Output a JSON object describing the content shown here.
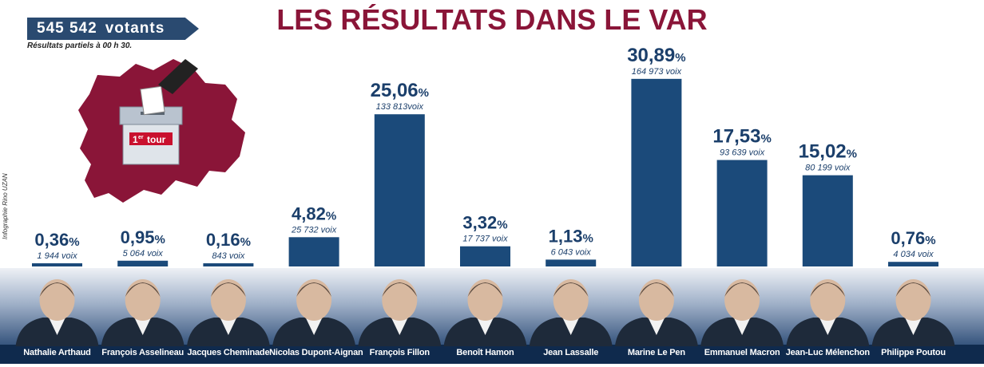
{
  "header": {
    "title": "LES RÉSULTATS DANS LE VAR",
    "voters_count": "545 542",
    "voters_label": "votants",
    "partial_note": "Résultats partiels à 00 h 30.",
    "credit": "Infographie Rino UZAN"
  },
  "map": {
    "ballot_label_main": "1",
    "ballot_label_sup": "er",
    "ballot_label_word": "tour"
  },
  "colors": {
    "bar": "#1b4a7a",
    "title": "#8a1538",
    "map": "#8a1538",
    "name_band": "#0f2a4d"
  },
  "chart_data": {
    "type": "bar",
    "title": "LES RÉSULTATS DANS LE VAR",
    "categories": [
      "Nathalie Arthaud",
      "François Asselineau",
      "Jacques Cheminade",
      "Nicolas Dupont-Aignan",
      "François Fillon",
      "Benoît Hamon",
      "Jean Lassalle",
      "Marine Le Pen",
      "Emmanuel Macron",
      "Jean-Luc Mélenchon",
      "Philippe Poutou"
    ],
    "values": [
      0.36,
      0.95,
      0.16,
      4.82,
      25.06,
      3.32,
      1.13,
      30.89,
      17.53,
      15.02,
      0.76
    ],
    "value_labels": [
      "0,36",
      "0,95",
      "0,16",
      "4,82",
      "25,06",
      "3,32",
      "1,13",
      "30,89",
      "17,53",
      "15,02",
      "0,76"
    ],
    "percent_sign": "%",
    "votes_labels": [
      "1 944 voix",
      "5 064 voix",
      "843 voix",
      "25 732 voix",
      "133 813voix",
      "17 737 voix",
      "6 043 voix",
      "164 973 voix",
      "93 639 voix",
      "80 199 voix",
      "4 034 voix"
    ],
    "ylim": [
      0,
      31
    ],
    "grid": false,
    "xlabel": "",
    "ylabel": ""
  }
}
